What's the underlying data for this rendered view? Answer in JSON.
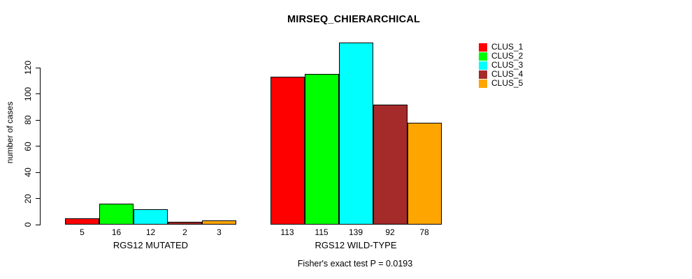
{
  "title": "MIRSEQ_CHIERARCHICAL",
  "annotation": "Fisher's exact test P = 0.0193",
  "chart_data": {
    "type": "bar",
    "title": "MIRSEQ_CHIERARCHICAL",
    "ylabel": "number of cases",
    "xlabel": "",
    "categories": [
      "RGS12 MUTATED",
      "RGS12 WILD-TYPE"
    ],
    "series": [
      {
        "name": "CLUS_1",
        "color": "#ff0000",
        "values": [
          5,
          113
        ]
      },
      {
        "name": "CLUS_2",
        "color": "#00ff00",
        "values": [
          16,
          115
        ]
      },
      {
        "name": "CLUS_3",
        "color": "#00ffff",
        "values": [
          12,
          139
        ]
      },
      {
        "name": "CLUS_4",
        "color": "#a52a2a",
        "values": [
          2,
          92
        ]
      },
      {
        "name": "CLUS_5",
        "color": "#ffa500",
        "values": [
          3,
          78
        ]
      }
    ],
    "y_ticks": [
      0,
      20,
      40,
      60,
      80,
      100,
      120
    ],
    "ylim": [
      0,
      145
    ],
    "grid": false,
    "bar_borders_color": "#000000",
    "value_labels_shown": true,
    "legend_position": "top-right",
    "annotation": "Fisher's exact test P = 0.0193"
  }
}
